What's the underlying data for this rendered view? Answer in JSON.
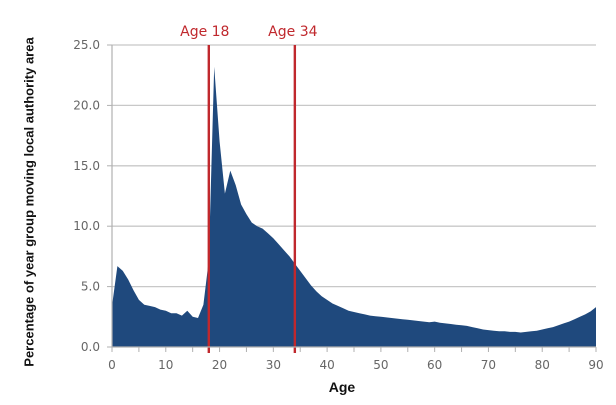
{
  "chart_data": {
    "type": "area",
    "title": "",
    "xlabel": "Age",
    "ylabel": "Percentage of year group moving local authority area",
    "xlim": [
      0,
      90
    ],
    "ylim": [
      0,
      25
    ],
    "x_ticks": [
      "0",
      "10",
      "20",
      "30",
      "40",
      "50",
      "60",
      "70",
      "80",
      "90"
    ],
    "y_ticks": [
      "0.0",
      "5.0",
      "10.0",
      "15.0",
      "20.0",
      "25.0"
    ],
    "grid": {
      "horizontal": true,
      "vertical": false
    },
    "legend": null,
    "series": [
      {
        "name": "Percentage moving local authority area",
        "color": "#1f497d",
        "x": [
          0,
          1,
          2,
          3,
          4,
          5,
          6,
          7,
          8,
          9,
          10,
          11,
          12,
          13,
          14,
          15,
          16,
          17,
          18,
          19,
          20,
          21,
          22,
          23,
          24,
          25,
          26,
          27,
          28,
          29,
          30,
          31,
          32,
          33,
          34,
          35,
          36,
          37,
          38,
          39,
          40,
          41,
          42,
          43,
          44,
          45,
          46,
          47,
          48,
          49,
          50,
          51,
          52,
          53,
          54,
          55,
          56,
          57,
          58,
          59,
          60,
          61,
          62,
          63,
          64,
          65,
          66,
          67,
          68,
          69,
          70,
          71,
          72,
          73,
          74,
          75,
          76,
          77,
          78,
          79,
          80,
          81,
          82,
          83,
          84,
          85,
          86,
          87,
          88,
          89,
          90
        ],
        "values": [
          3.4,
          6.7,
          6.3,
          5.6,
          4.7,
          3.9,
          3.5,
          3.4,
          3.3,
          3.1,
          3.0,
          2.8,
          2.8,
          2.6,
          3.0,
          2.5,
          2.4,
          3.5,
          7.2,
          23.2,
          17.0,
          12.7,
          14.6,
          13.4,
          11.8,
          11.0,
          10.3,
          10.0,
          9.8,
          9.4,
          9.0,
          8.5,
          8.0,
          7.5,
          6.9,
          6.3,
          5.7,
          5.1,
          4.6,
          4.2,
          3.9,
          3.6,
          3.4,
          3.2,
          3.0,
          2.9,
          2.8,
          2.7,
          2.6,
          2.55,
          2.5,
          2.45,
          2.4,
          2.35,
          2.3,
          2.25,
          2.2,
          2.15,
          2.1,
          2.05,
          2.1,
          2.0,
          1.95,
          1.9,
          1.85,
          1.8,
          1.75,
          1.65,
          1.55,
          1.45,
          1.4,
          1.35,
          1.3,
          1.3,
          1.25,
          1.25,
          1.2,
          1.25,
          1.3,
          1.35,
          1.45,
          1.55,
          1.65,
          1.8,
          1.95,
          2.1,
          2.3,
          2.5,
          2.7,
          2.95,
          3.3
        ]
      }
    ],
    "annotations": [
      {
        "type": "vline",
        "x": 18,
        "label": "Age 18",
        "color": "#c0282d"
      },
      {
        "type": "vline",
        "x": 34,
        "label": "Age 34",
        "color": "#c0282d"
      }
    ]
  },
  "labels": {
    "xlabel": "Age",
    "ylabel": "Percentage of year group moving local authority area",
    "marker_18": "Age 18",
    "marker_34": "Age 34"
  }
}
